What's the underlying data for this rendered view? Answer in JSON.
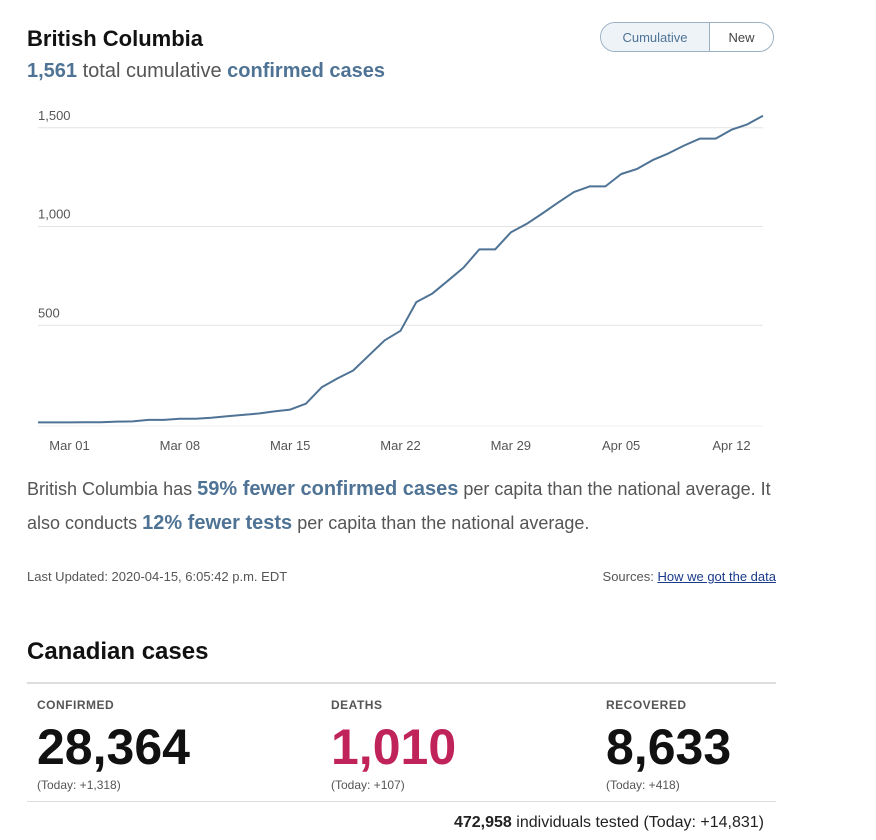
{
  "header": {
    "title": "British Columbia",
    "headline_number": "1,561",
    "headline_text": "total cumulative",
    "headline_emphasis": "confirmed cases"
  },
  "toggle": {
    "options": [
      "Cumulative",
      "New"
    ],
    "selected": "Cumulative"
  },
  "chart_data": {
    "type": "line",
    "title": "",
    "xlabel": "",
    "ylabel": "",
    "x_tick_labels": [
      "Mar 01",
      "Mar 08",
      "Mar 15",
      "Mar 22",
      "Mar 29",
      "Apr 05",
      "Apr 12"
    ],
    "y_tick_labels": [
      "500",
      "1,000",
      "1,500"
    ],
    "y_ticks": [
      500,
      1000,
      1500
    ],
    "ylim": [
      0,
      1600
    ],
    "grid": true,
    "line_color": "#4f7395",
    "x": [
      "Feb 28",
      "Feb 29",
      "Mar 01",
      "Mar 02",
      "Mar 03",
      "Mar 04",
      "Mar 05",
      "Mar 06",
      "Mar 07",
      "Mar 08",
      "Mar 09",
      "Mar 10",
      "Mar 11",
      "Mar 12",
      "Mar 13",
      "Mar 14",
      "Mar 15",
      "Mar 16",
      "Mar 17",
      "Mar 18",
      "Mar 19",
      "Mar 20",
      "Mar 21",
      "Mar 22",
      "Mar 23",
      "Mar 24",
      "Mar 25",
      "Mar 26",
      "Mar 27",
      "Mar 28",
      "Mar 29",
      "Mar 30",
      "Mar 31",
      "Apr 01",
      "Apr 02",
      "Apr 03",
      "Apr 04",
      "Apr 05",
      "Apr 06",
      "Apr 07",
      "Apr 08",
      "Apr 09",
      "Apr 10",
      "Apr 11",
      "Apr 12",
      "Apr 13",
      "Apr 14"
    ],
    "values": [
      8,
      8,
      8,
      9,
      9,
      12,
      13,
      21,
      21,
      27,
      27,
      32,
      39,
      46,
      53,
      64,
      73,
      103,
      186,
      231,
      271,
      348,
      424,
      472,
      617,
      659,
      725,
      792,
      884,
      884,
      970,
      1013,
      1066,
      1121,
      1174,
      1203,
      1203,
      1266,
      1291,
      1336,
      1370,
      1410,
      1445,
      1445,
      1490,
      1517,
      1561
    ]
  },
  "summary": {
    "region": "British Columbia",
    "has": "has",
    "stat1": "59% fewer confirmed cases",
    "mid": "per capita than the national average. It also conducts",
    "stat2": "12% fewer tests",
    "end": "per capita than the national average."
  },
  "meta": {
    "last_updated": "Last Updated: 2020-04-15, 6:05:42 p.m. EDT",
    "sources_label": "Sources:",
    "sources_link": "How we got the data"
  },
  "canada": {
    "title": "Canadian cases",
    "confirmed": {
      "label": "CONFIRMED",
      "value": "28,364",
      "today": "(Today: +1,318)",
      "color": "#111111"
    },
    "deaths": {
      "label": "DEATHS",
      "value": "1,010",
      "today": "(Today: +107)",
      "color": "#c0235a"
    },
    "recovered": {
      "label": "RECOVERED",
      "value": "8,633",
      "today": "(Today: +418)",
      "color": "#111111"
    },
    "tested_number": "472,958",
    "tested_text": "individuals tested (Today: +14,831)"
  }
}
